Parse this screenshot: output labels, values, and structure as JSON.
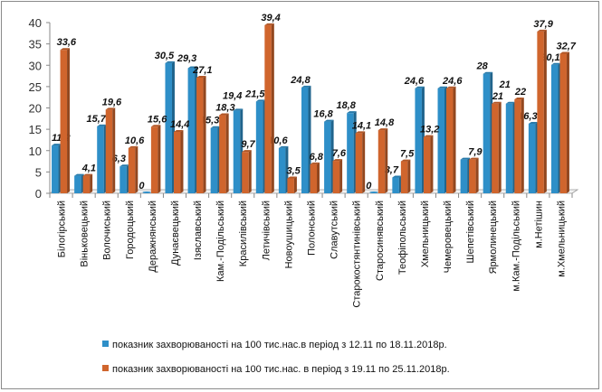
{
  "chart_data": {
    "type": "bar",
    "title": "",
    "xlabel": "",
    "ylabel": "",
    "ylim": [
      0,
      40
    ],
    "yticks": [
      0,
      5,
      10,
      15,
      20,
      25,
      30,
      35,
      40
    ],
    "grid": false,
    "legend_position": "bottom",
    "categories": [
      "Білогірський",
      "Віньковецький",
      "Волочиський",
      "Городоцький",
      "Деражнянський",
      "Дунаєвецький",
      "Ізяславський",
      "Кам.-Подільський",
      "Красилівський",
      "Летичівський",
      "Новоушицький",
      "Полонський",
      "Славутський",
      "Старокостянтинівський",
      "Старосинявський",
      "Теофіпольський",
      "Хмельницький",
      "Чемеровецький",
      "Шепетівський",
      "Ярмолинецький",
      "м.Кам.-Подільський",
      "м.Нетішин",
      "м.Хмельницький"
    ],
    "series": [
      {
        "name": "показник захворюваності на 100 тис.нас.в період з 12.11 по 18.11.2018р.",
        "color": "#2e8fc8",
        "values": [
          11.2,
          4.1,
          15.7,
          6.3,
          0,
          30.5,
          29.3,
          15.3,
          19.4,
          21.5,
          10.6,
          24.8,
          16.8,
          18.8,
          0,
          3.7,
          24.6,
          24.6,
          7.9,
          28,
          21,
          16.3,
          30.1
        ],
        "labels": [
          "11,2",
          "",
          "15,7",
          "6,3",
          "0",
          "30,5",
          "29,3",
          "15,3",
          "19,4",
          "21,5",
          "10,6",
          "24,8",
          "16,8",
          "18,8",
          "0",
          "3,7",
          "24,6",
          "",
          "",
          "28",
          "21",
          "16,3",
          "30,1"
        ]
      },
      {
        "name": "показник захворюваності на 100 тис.нас. в період з 19.11 по 25.11.2018р.",
        "color": "#d0652d",
        "values": [
          33.6,
          4.1,
          19.6,
          10.6,
          15.6,
          14.4,
          27.1,
          18.3,
          9.7,
          39.4,
          3.5,
          6.8,
          7.6,
          14.1,
          14.8,
          7.5,
          13.2,
          24.6,
          7.9,
          21,
          22,
          37.9,
          32.7
        ],
        "labels": [
          "33,6",
          "4,1",
          "19,6",
          "10,6",
          "15,6",
          "14,4",
          "27,1",
          "18,3",
          "9,7",
          "39,4",
          "3,5",
          "6,8",
          "7,6",
          "14,1",
          "14,8",
          "7,5",
          "13,2",
          "24,6",
          "7,9",
          "21",
          "22",
          "37,9",
          "32,7"
        ]
      }
    ]
  }
}
